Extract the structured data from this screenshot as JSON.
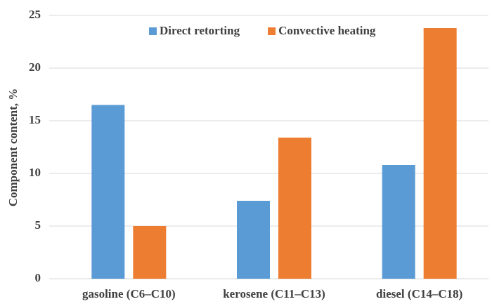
{
  "chart_data": {
    "type": "bar",
    "y_label": "Component content, %",
    "categories": [
      "gasoline (C6–C10)",
      "kerosene (C11–C13)",
      "diesel (C14–C18)"
    ],
    "series": [
      {
        "name": "Direct retorting",
        "color": "#5b9bd5",
        "values": [
          16.5,
          7.4,
          10.8
        ]
      },
      {
        "name": "Convective heating",
        "color": "#ed7d31",
        "values": [
          5.0,
          13.4,
          23.8
        ]
      }
    ],
    "ylim": [
      0,
      25
    ],
    "yticks": [
      0,
      5,
      10,
      15,
      20,
      25
    ],
    "grid": true,
    "legend": "top"
  }
}
